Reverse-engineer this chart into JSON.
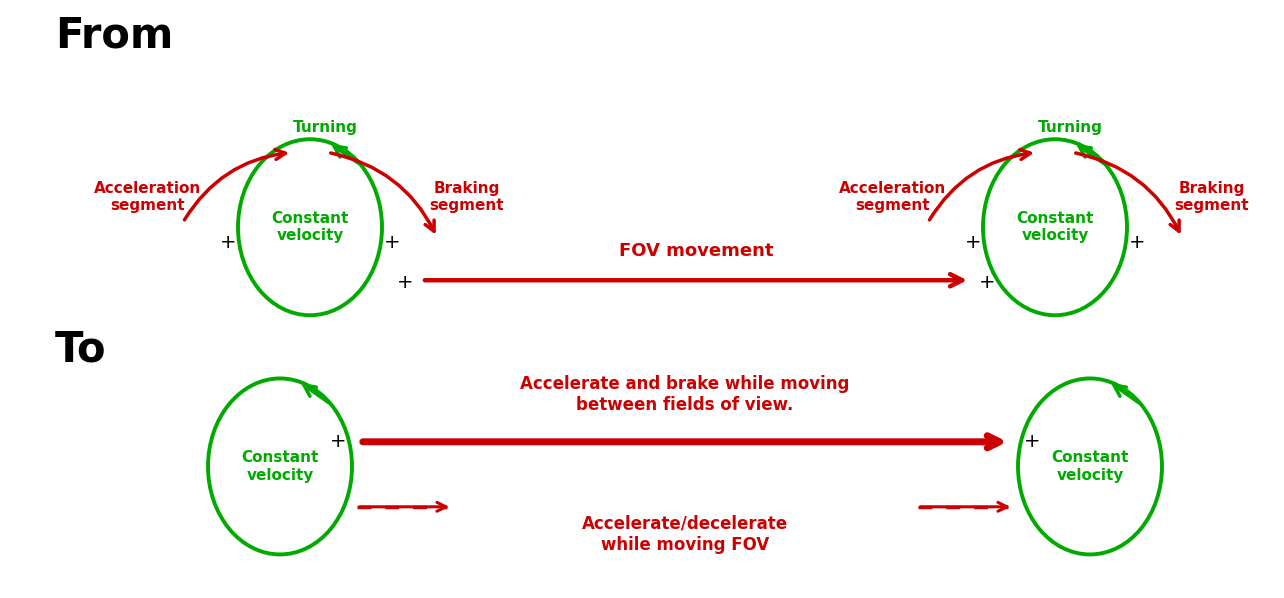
{
  "bg_color": "#ffffff",
  "green": "#00aa00",
  "red": "#cc0000",
  "black": "#000000",
  "from_label": "From",
  "to_label": "To",
  "accel_label": "Acceleration\nsegment",
  "turning_label": "Turning",
  "braking_label": "Braking\nsegment",
  "const_vel_label": "Constant\nvelocity",
  "fov_movement_label": "FOV movement",
  "accel_brake_label": "Accelerate and brake while moving\nbetween fields of view.",
  "accel_decel_label": "Accelerate/decelerate\nwhile moving FOV",
  "fig_width": 12.84,
  "fig_height": 5.98,
  "dpi": 100
}
